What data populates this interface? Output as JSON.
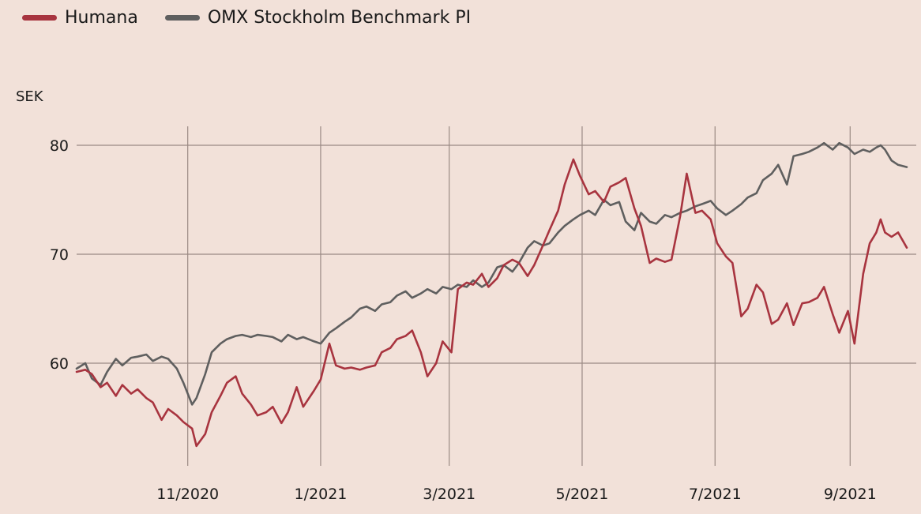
{
  "legend": {
    "humana": "Humana",
    "omx": "OMX Stockholm Benchmark PI"
  },
  "colors": {
    "humana": "#a8343f",
    "omx": "#5f5f5f",
    "grid": "#9a8a84",
    "background": "#f2e1d9"
  },
  "chart_data": {
    "type": "line",
    "ylabel": "SEK",
    "ylim": [
      50,
      82
    ],
    "yticks": [
      60,
      70,
      80
    ],
    "xticks": [
      "11/2020",
      "1/2021",
      "3/2021",
      "5/2021",
      "7/2021",
      "9/2021"
    ],
    "xrange": [
      "2020-09-11",
      "2021-09-17"
    ],
    "series": [
      {
        "name": "Humana",
        "points": [
          [
            "2020-09-11",
            59.2
          ],
          [
            "2020-09-15",
            59.4
          ],
          [
            "2020-09-18",
            59.0
          ],
          [
            "2020-09-22",
            57.8
          ],
          [
            "2020-09-25",
            58.2
          ],
          [
            "2020-09-29",
            57.0
          ],
          [
            "2020-10-02",
            58.0
          ],
          [
            "2020-10-06",
            57.2
          ],
          [
            "2020-10-09",
            57.6
          ],
          [
            "2020-10-13",
            56.8
          ],
          [
            "2020-10-16",
            56.4
          ],
          [
            "2020-10-20",
            54.8
          ],
          [
            "2020-10-23",
            55.8
          ],
          [
            "2020-10-27",
            55.2
          ],
          [
            "2020-10-30",
            54.6
          ],
          [
            "2020-11-03",
            54.0
          ],
          [
            "2020-11-05",
            52.4
          ],
          [
            "2020-11-09",
            53.5
          ],
          [
            "2020-11-12",
            55.5
          ],
          [
            "2020-11-16",
            57.0
          ],
          [
            "2020-11-19",
            58.2
          ],
          [
            "2020-11-23",
            58.8
          ],
          [
            "2020-11-26",
            57.2
          ],
          [
            "2020-11-30",
            56.2
          ],
          [
            "2020-12-03",
            55.2
          ],
          [
            "2020-12-07",
            55.5
          ],
          [
            "2020-12-10",
            56.0
          ],
          [
            "2020-12-14",
            54.5
          ],
          [
            "2020-12-17",
            55.5
          ],
          [
            "2020-12-21",
            57.8
          ],
          [
            "2020-12-24",
            56.0
          ],
          [
            "2020-12-29",
            57.5
          ],
          [
            "2021-01-01",
            58.5
          ],
          [
            "2021-01-05",
            61.8
          ],
          [
            "2021-01-08",
            59.8
          ],
          [
            "2021-01-12",
            59.5
          ],
          [
            "2021-01-15",
            59.6
          ],
          [
            "2021-01-19",
            59.4
          ],
          [
            "2021-01-22",
            59.6
          ],
          [
            "2021-01-26",
            59.8
          ],
          [
            "2021-01-29",
            61.0
          ],
          [
            "2021-02-02",
            61.4
          ],
          [
            "2021-02-05",
            62.2
          ],
          [
            "2021-02-09",
            62.5
          ],
          [
            "2021-02-12",
            63.0
          ],
          [
            "2021-02-16",
            61.0
          ],
          [
            "2021-02-19",
            58.8
          ],
          [
            "2021-02-23",
            60.0
          ],
          [
            "2021-02-26",
            62.0
          ],
          [
            "2021-03-02",
            61.0
          ],
          [
            "2021-03-05",
            66.8
          ],
          [
            "2021-03-09",
            67.4
          ],
          [
            "2021-03-12",
            67.2
          ],
          [
            "2021-03-16",
            68.2
          ],
          [
            "2021-03-19",
            67.0
          ],
          [
            "2021-03-23",
            67.8
          ],
          [
            "2021-03-26",
            69.0
          ],
          [
            "2021-03-30",
            69.5
          ],
          [
            "2021-04-02",
            69.2
          ],
          [
            "2021-04-06",
            68.0
          ],
          [
            "2021-04-09",
            69.0
          ],
          [
            "2021-04-13",
            70.8
          ],
          [
            "2021-04-16",
            72.2
          ],
          [
            "2021-04-20",
            74.0
          ],
          [
            "2021-04-23",
            76.4
          ],
          [
            "2021-04-27",
            78.7
          ],
          [
            "2021-04-30",
            77.2
          ],
          [
            "2021-05-04",
            75.5
          ],
          [
            "2021-05-07",
            75.8
          ],
          [
            "2021-05-11",
            74.8
          ],
          [
            "2021-05-14",
            76.2
          ],
          [
            "2021-05-18",
            76.6
          ],
          [
            "2021-05-21",
            77.0
          ],
          [
            "2021-05-25",
            74.2
          ],
          [
            "2021-05-28",
            72.6
          ],
          [
            "2021-06-01",
            69.2
          ],
          [
            "2021-06-04",
            69.6
          ],
          [
            "2021-06-08",
            69.3
          ],
          [
            "2021-06-11",
            69.5
          ],
          [
            "2021-06-15",
            73.5
          ],
          [
            "2021-06-18",
            77.4
          ],
          [
            "2021-06-22",
            73.8
          ],
          [
            "2021-06-25",
            74.0
          ],
          [
            "2021-06-29",
            73.2
          ],
          [
            "2021-07-02",
            71.0
          ],
          [
            "2021-07-06",
            69.8
          ],
          [
            "2021-07-09",
            69.2
          ],
          [
            "2021-07-13",
            64.3
          ],
          [
            "2021-07-16",
            65.0
          ],
          [
            "2021-07-20",
            67.2
          ],
          [
            "2021-07-23",
            66.5
          ],
          [
            "2021-07-27",
            63.6
          ],
          [
            "2021-07-30",
            64.0
          ],
          [
            "2021-08-03",
            65.5
          ],
          [
            "2021-08-06",
            63.5
          ],
          [
            "2021-08-10",
            65.5
          ],
          [
            "2021-08-13",
            65.6
          ],
          [
            "2021-08-17",
            66.0
          ],
          [
            "2021-08-20",
            67.0
          ],
          [
            "2021-08-24",
            64.5
          ],
          [
            "2021-08-27",
            62.8
          ],
          [
            "2021-08-31",
            64.8
          ],
          [
            "2021-09-03",
            61.8
          ],
          [
            "2021-09-07",
            68.2
          ],
          [
            "2021-09-10",
            71.0
          ],
          [
            "2021-09-13",
            72.0
          ],
          [
            "2021-09-15",
            73.2
          ],
          [
            "2021-09-17",
            72.0
          ],
          [
            "2021-09-20",
            71.6
          ],
          [
            "2021-09-23",
            72.0
          ],
          [
            "2021-09-27",
            70.6
          ]
        ]
      },
      {
        "name": "OMX Stockholm Benchmark PI",
        "points": [
          [
            "2020-09-11",
            59.5
          ],
          [
            "2020-09-15",
            60.0
          ],
          [
            "2020-09-18",
            58.6
          ],
          [
            "2020-09-22",
            58.0
          ],
          [
            "2020-09-25",
            59.2
          ],
          [
            "2020-09-29",
            60.4
          ],
          [
            "2020-10-02",
            59.8
          ],
          [
            "2020-10-06",
            60.5
          ],
          [
            "2020-10-09",
            60.6
          ],
          [
            "2020-10-13",
            60.8
          ],
          [
            "2020-10-16",
            60.2
          ],
          [
            "2020-10-20",
            60.6
          ],
          [
            "2020-10-23",
            60.4
          ],
          [
            "2020-10-27",
            59.5
          ],
          [
            "2020-10-30",
            58.2
          ],
          [
            "2020-11-03",
            56.2
          ],
          [
            "2020-11-05",
            56.8
          ],
          [
            "2020-11-09",
            59.0
          ],
          [
            "2020-11-12",
            61.0
          ],
          [
            "2020-11-16",
            61.8
          ],
          [
            "2020-11-19",
            62.2
          ],
          [
            "2020-11-23",
            62.5
          ],
          [
            "2020-11-26",
            62.6
          ],
          [
            "2020-11-30",
            62.4
          ],
          [
            "2020-12-03",
            62.6
          ],
          [
            "2020-12-07",
            62.5
          ],
          [
            "2020-12-10",
            62.4
          ],
          [
            "2020-12-14",
            62.0
          ],
          [
            "2020-12-17",
            62.6
          ],
          [
            "2020-12-21",
            62.2
          ],
          [
            "2020-12-24",
            62.4
          ],
          [
            "2020-12-29",
            62.0
          ],
          [
            "2021-01-01",
            61.8
          ],
          [
            "2021-01-05",
            62.8
          ],
          [
            "2021-01-08",
            63.2
          ],
          [
            "2021-01-12",
            63.8
          ],
          [
            "2021-01-15",
            64.2
          ],
          [
            "2021-01-19",
            65.0
          ],
          [
            "2021-01-22",
            65.2
          ],
          [
            "2021-01-26",
            64.8
          ],
          [
            "2021-01-29",
            65.4
          ],
          [
            "2021-02-02",
            65.6
          ],
          [
            "2021-02-05",
            66.2
          ],
          [
            "2021-02-09",
            66.6
          ],
          [
            "2021-02-12",
            66.0
          ],
          [
            "2021-02-16",
            66.4
          ],
          [
            "2021-02-19",
            66.8
          ],
          [
            "2021-02-23",
            66.4
          ],
          [
            "2021-02-26",
            67.0
          ],
          [
            "2021-03-02",
            66.8
          ],
          [
            "2021-03-05",
            67.2
          ],
          [
            "2021-03-09",
            67.0
          ],
          [
            "2021-03-12",
            67.6
          ],
          [
            "2021-03-16",
            67.0
          ],
          [
            "2021-03-19",
            67.4
          ],
          [
            "2021-03-23",
            68.8
          ],
          [
            "2021-03-26",
            69.0
          ],
          [
            "2021-03-30",
            68.4
          ],
          [
            "2021-04-02",
            69.2
          ],
          [
            "2021-04-06",
            70.6
          ],
          [
            "2021-04-09",
            71.2
          ],
          [
            "2021-04-13",
            70.8
          ],
          [
            "2021-04-16",
            71.0
          ],
          [
            "2021-04-20",
            72.0
          ],
          [
            "2021-04-23",
            72.6
          ],
          [
            "2021-04-27",
            73.2
          ],
          [
            "2021-04-30",
            73.6
          ],
          [
            "2021-05-04",
            74.0
          ],
          [
            "2021-05-07",
            73.6
          ],
          [
            "2021-05-11",
            75.0
          ],
          [
            "2021-05-14",
            74.5
          ],
          [
            "2021-05-18",
            74.8
          ],
          [
            "2021-05-21",
            73.0
          ],
          [
            "2021-05-25",
            72.2
          ],
          [
            "2021-05-28",
            73.8
          ],
          [
            "2021-06-01",
            73.0
          ],
          [
            "2021-06-04",
            72.8
          ],
          [
            "2021-06-08",
            73.6
          ],
          [
            "2021-06-11",
            73.4
          ],
          [
            "2021-06-15",
            73.8
          ],
          [
            "2021-06-18",
            74.0
          ],
          [
            "2021-06-22",
            74.4
          ],
          [
            "2021-06-25",
            74.6
          ],
          [
            "2021-06-29",
            74.9
          ],
          [
            "2021-07-02",
            74.2
          ],
          [
            "2021-07-06",
            73.6
          ],
          [
            "2021-07-09",
            74.0
          ],
          [
            "2021-07-13",
            74.6
          ],
          [
            "2021-07-16",
            75.2
          ],
          [
            "2021-07-20",
            75.6
          ],
          [
            "2021-07-23",
            76.8
          ],
          [
            "2021-07-27",
            77.4
          ],
          [
            "2021-07-30",
            78.2
          ],
          [
            "2021-08-03",
            76.4
          ],
          [
            "2021-08-06",
            79.0
          ],
          [
            "2021-08-10",
            79.2
          ],
          [
            "2021-08-13",
            79.4
          ],
          [
            "2021-08-17",
            79.8
          ],
          [
            "2021-08-20",
            80.2
          ],
          [
            "2021-08-24",
            79.6
          ],
          [
            "2021-08-27",
            80.2
          ],
          [
            "2021-08-31",
            79.8
          ],
          [
            "2021-09-03",
            79.2
          ],
          [
            "2021-09-07",
            79.6
          ],
          [
            "2021-09-10",
            79.4
          ],
          [
            "2021-09-13",
            79.8
          ],
          [
            "2021-09-15",
            80.0
          ],
          [
            "2021-09-17",
            79.6
          ],
          [
            "2021-09-20",
            78.6
          ],
          [
            "2021-09-23",
            78.2
          ],
          [
            "2021-09-27",
            78.0
          ]
        ]
      }
    ]
  }
}
